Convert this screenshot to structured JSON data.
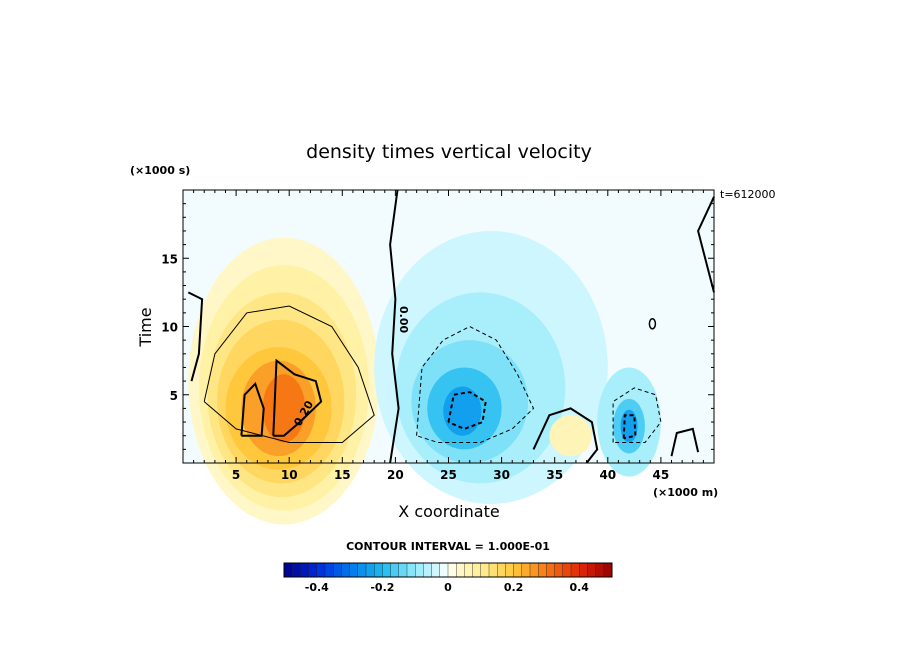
{
  "chart_data": {
    "type": "heatmap",
    "title": "density times vertical velocity",
    "xlabel": "X coordinate",
    "ylabel": "Time",
    "x_unit_label": "(×1000 m)",
    "y_unit_label": "(×1000 s)",
    "time_stamp": "t=612000",
    "xlim": [
      0,
      50
    ],
    "ylim": [
      0,
      20
    ],
    "x_ticks": [
      5,
      10,
      15,
      20,
      25,
      30,
      35,
      40,
      45
    ],
    "y_ticks": [
      5,
      10,
      15
    ],
    "contour_interval_text": "CONTOUR INTERVAL = 1.000E-01",
    "contour_labels": [
      "0.00",
      "0.20"
    ],
    "colorbar": {
      "range": [
        -0.5,
        0.5
      ],
      "ticks": [
        -0.4,
        -0.2,
        0,
        0.2,
        0.4
      ],
      "tick_labels": [
        "-0.4",
        "-0.2",
        "0",
        "0.2",
        "0.4"
      ]
    },
    "features": [
      {
        "name": "positive lobe",
        "x_center": 9,
        "t_center": 4,
        "peak": 0.33
      },
      {
        "name": "negative lobe",
        "x_center": 26.5,
        "t_center": 4,
        "peak": -0.28
      },
      {
        "name": "negative cell",
        "x_center": 42,
        "t_center": 2.7,
        "peak": -0.25
      },
      {
        "name": "small positive cell",
        "x_center": 36.5,
        "t_center": 2,
        "peak": 0.06
      }
    ]
  }
}
